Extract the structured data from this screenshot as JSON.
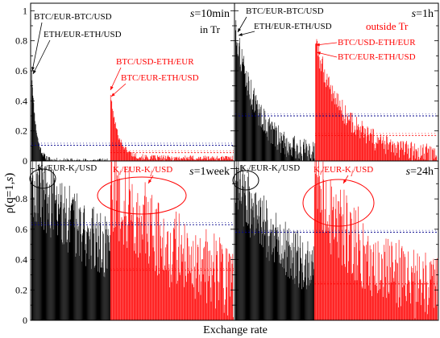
{
  "figure": {
    "xlabel": "Exchange rate",
    "ylabel_main": "ρ(q=1,",
    "ylabel_s": "s",
    "ylabel_tail": ")"
  },
  "colors": {
    "inside": "#000000",
    "outside": "#ff0000",
    "mean_inside": "#00008b",
    "mean_outside": "#ff0000",
    "frame": "#000000"
  },
  "chart_data": [
    {
      "type": "bar",
      "panel": "top-left",
      "scale": "s=10min",
      "scale_var": "s",
      "scale_value": "=10min",
      "region_label": "in Tr",
      "ylim": [
        0,
        1.05
      ],
      "yticks": [
        0,
        0.2,
        0.4,
        0.6,
        0.8,
        1
      ],
      "ytick_labels": [
        "0",
        "0.2",
        "0.4",
        "0.6",
        "0.8",
        "1"
      ],
      "inside": {
        "name": "in Tr",
        "count": 190,
        "max": 0.6,
        "decay": 18,
        "floor": 0.0,
        "noise": 0.02,
        "mean": 0.105
      },
      "outside": {
        "name": "outside Tr",
        "count": 200,
        "max": 0.44,
        "decay": 16,
        "floor": 0.02,
        "noise": 0.02,
        "mean": 0.055
      },
      "annotations": [
        {
          "text": "BTC/EUR-BTC/USD",
          "color": "black"
        },
        {
          "text": "ETH/EUR-ETH/USD",
          "color": "black"
        },
        {
          "text": "BTC/USD-ETH/EUR",
          "color": "red"
        },
        {
          "text": "BTC/EUR-ETH/USD",
          "color": "red"
        }
      ]
    },
    {
      "type": "bar",
      "panel": "top-right",
      "scale": "s=1h",
      "scale_var": "s",
      "scale_value": "=1h",
      "region_label": "outside Tr",
      "ylim": [
        0,
        1.05
      ],
      "inside": {
        "name": "in Tr",
        "count": 190,
        "max": 0.87,
        "decay": 3.5,
        "floor": 0.02,
        "noise": 0.1,
        "mean": 0.3
      },
      "outside": {
        "name": "outside Tr",
        "count": 200,
        "max": 0.78,
        "decay": 4,
        "floor": 0.03,
        "noise": 0.08,
        "mean": 0.17
      },
      "annotations": [
        {
          "text": "BTC/EUR-BTC/USD",
          "color": "black"
        },
        {
          "text": "ETH/EUR-ETH/USD",
          "color": "black"
        },
        {
          "text": "BTC/USD-ETH/EUR",
          "color": "red"
        },
        {
          "text": "BTC/EUR-ETH/USD",
          "color": "red"
        }
      ]
    },
    {
      "type": "bar",
      "panel": "bottom-left",
      "scale": "s=1week",
      "scale_var": "s",
      "scale_value": "=1week",
      "ylim": [
        0,
        1.05
      ],
      "yticks": [
        0,
        0.2,
        0.4,
        0.6,
        0.8,
        1
      ],
      "ytick_labels": [
        "0",
        "0.2",
        "0.4",
        "0.6",
        "0.8",
        ""
      ],
      "inside": {
        "name": "in Tr",
        "count": 190,
        "max": 0.92,
        "decay": 0.8,
        "floor": 0.1,
        "noise": 0.25,
        "mean": 0.63
      },
      "outside": {
        "name": "outside Tr",
        "count": 200,
        "max": 0.89,
        "decay": 1.3,
        "floor": 0.03,
        "noise": 0.3,
        "mean": 0.33
      },
      "annotations": [
        {
          "text_pre": "K",
          "text_sub": "i",
          "text_mid": "/EUR-K",
          "text_sub2": "i",
          "text_post": "/USD",
          "color": "black"
        },
        {
          "text_pre": "K",
          "text_sub": "i",
          "text_mid": "/EUR-K",
          "text_sub2": "j",
          "text_post": "/USD",
          "color": "red"
        }
      ]
    },
    {
      "type": "bar",
      "panel": "bottom-right",
      "scale": "s=24h",
      "scale_var": "s",
      "scale_value": "=24h",
      "ylim": [
        0,
        1.05
      ],
      "inside": {
        "name": "in Tr",
        "count": 190,
        "max": 0.92,
        "decay": 1.2,
        "floor": 0.08,
        "noise": 0.22,
        "mean": 0.58
      },
      "outside": {
        "name": "outside Tr",
        "count": 200,
        "max": 0.88,
        "decay": 1.7,
        "floor": 0.03,
        "noise": 0.28,
        "mean": 0.24
      },
      "annotations": [
        {
          "text_pre": "K",
          "text_sub": "i",
          "text_mid": "/EUR-K",
          "text_sub2": "i",
          "text_post": "/USD",
          "color": "black"
        },
        {
          "text_pre": "K",
          "text_sub": "i",
          "text_mid": "/EUR-K",
          "text_sub2": "j",
          "text_post": "/USD",
          "color": "red"
        }
      ]
    }
  ]
}
